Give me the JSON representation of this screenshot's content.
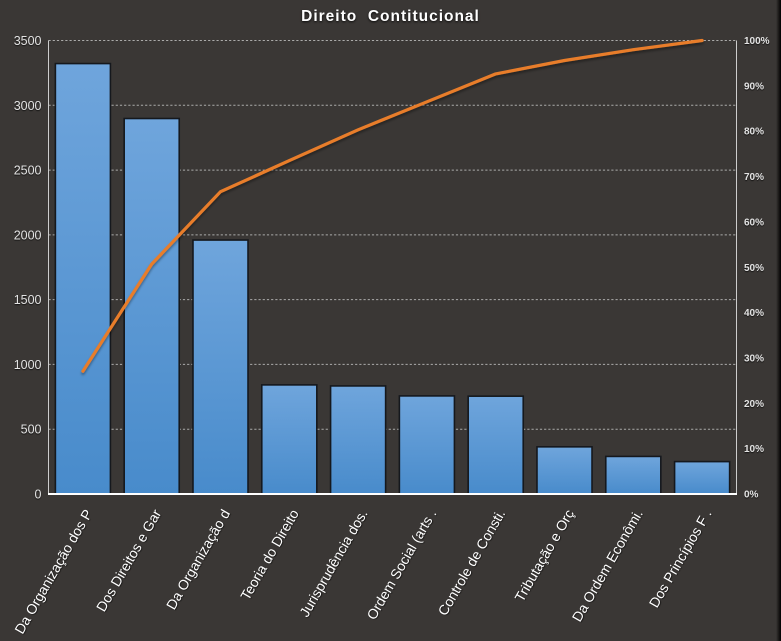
{
  "chart_data": {
    "type": "bar",
    "subtype": "pareto",
    "title": "Direito  Contitucional",
    "categories": [
      "Da Organização dos P",
      "Dos Direitos e Gar",
      "Da Organização d",
      "Teoria do Direito",
      "Jurisprudência dos.",
      "Ordem Social (arts .",
      "Controle de Consti.",
      "Tributação e Orç",
      "Da Ordem Econômi.",
      "Dos Princípios F ."
    ],
    "values": [
      3322,
      2898,
      1960,
      842,
      834,
      757,
      755,
      364,
      290,
      250
    ],
    "cumulative_percent": [
      27.1,
      50.7,
      66.7,
      73.5,
      80.3,
      86.5,
      92.6,
      95.6,
      98.0,
      100.0
    ],
    "left_axis": {
      "min": 0,
      "max": 3500,
      "step": 500,
      "tick_labels": [
        "3500",
        "3000",
        "2500",
        "2000",
        "1500",
        "1000",
        "500",
        "0"
      ]
    },
    "right_axis": {
      "min_percent": 0,
      "max_percent": 100,
      "step_percent": 10,
      "tick_labels": [
        "100%",
        "90%",
        "80%",
        "70%",
        "60%",
        "50%",
        "40%",
        "30%",
        "20%",
        "10%",
        "0%"
      ]
    },
    "grid": "horizontal-dashed",
    "legend": "none",
    "xlabel": "",
    "ylabel": ""
  },
  "colors": {
    "background": "#3a3735",
    "bar_fill_top": "#6fa5dc",
    "bar_fill_bottom": "#488bcb",
    "bar_border": "#15181d",
    "line": "#e87d2c",
    "gridline": "#c8c8c8",
    "axis_line": "#cdcdcd",
    "baseline": "#ffffff",
    "title_text": "#ffffff",
    "tick_text": "#e3e3e3",
    "category_text": "#ffffff"
  }
}
